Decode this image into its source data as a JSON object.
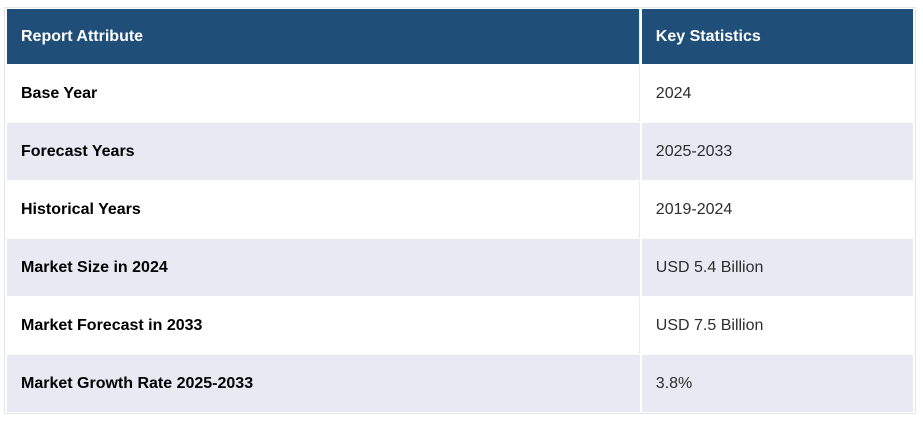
{
  "table": {
    "header": {
      "attribute": "Report Attribute",
      "statistic": "Key Statistics"
    },
    "rows": [
      {
        "attribute": "Base Year",
        "statistic": "2024"
      },
      {
        "attribute": "Forecast Years",
        "statistic": "2025-2033"
      },
      {
        "attribute": "Historical Years",
        "statistic": "2019-2024"
      },
      {
        "attribute": "Market Size in 2024",
        "statistic": "USD 5.4 Billion"
      },
      {
        "attribute": "Market Forecast in 2033",
        "statistic": "USD 7.5 Billion"
      },
      {
        "attribute": "Market Growth Rate 2025-2033",
        "statistic": "3.8%"
      }
    ]
  },
  "colors": {
    "header_background": "#1f4e79",
    "header_text": "#ffffff",
    "stripe_row_background": "#e8e9f2",
    "row_background": "#ffffff",
    "attribute_text": "#000000",
    "value_text": "#2d2d2d",
    "border": "#e4e4ec"
  },
  "chart_data": {
    "type": "table",
    "columns": [
      "Report Attribute",
      "Key Statistics"
    ],
    "rows": [
      [
        "Base Year",
        "2024"
      ],
      [
        "Forecast Years",
        "2025-2033"
      ],
      [
        "Historical Years",
        "2019-2024"
      ],
      [
        "Market Size in 2024",
        "USD 5.4 Billion"
      ],
      [
        "Market Forecast in 2033",
        "USD 7.5 Billion"
      ],
      [
        "Market Growth Rate 2025-2033",
        "3.8%"
      ]
    ],
    "layout": {
      "header_style": "dark-blue bold white text",
      "row_striping": "white / light lavender alternating starting white",
      "column_widths_pct": [
        70,
        30
      ]
    }
  }
}
